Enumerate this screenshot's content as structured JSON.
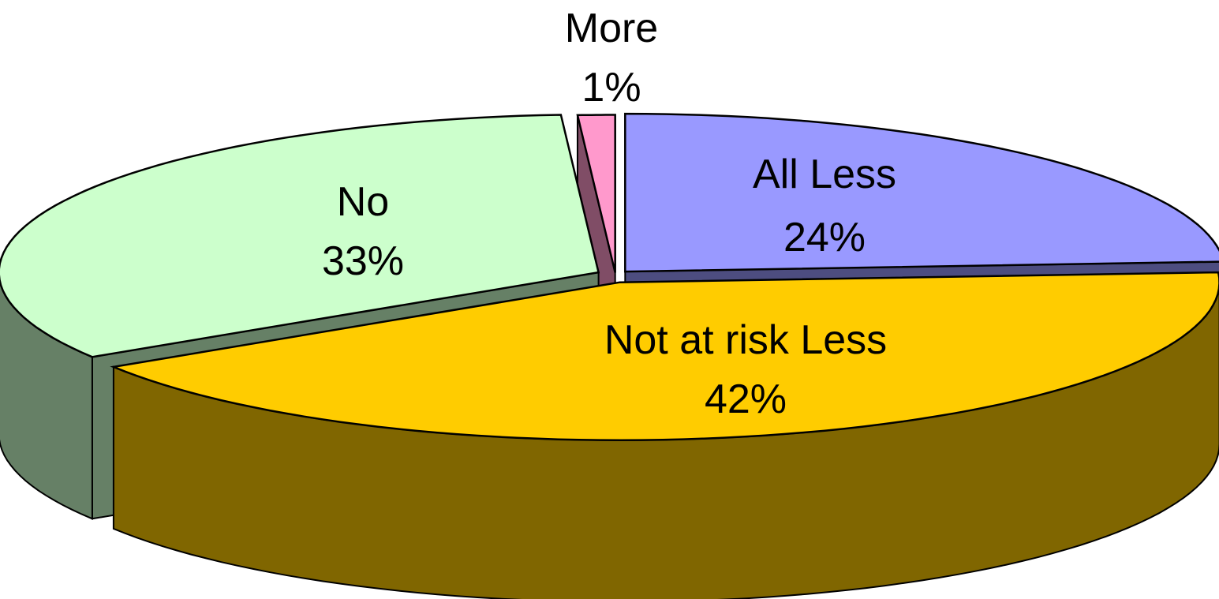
{
  "chart_data": {
    "type": "pie",
    "style": "3d-exploded",
    "slices": [
      {
        "category": "All Less",
        "value": 24,
        "pct_label": "24%",
        "top_color": "#9999ff",
        "side_color": "#4d4d80"
      },
      {
        "category": "Not at risk Less",
        "value": 42,
        "pct_label": "42%",
        "top_color": "#ffcc00",
        "side_color": "#806600"
      },
      {
        "category": "No",
        "value": 33,
        "pct_label": "33%",
        "top_color": "#ccffcc",
        "side_color": "#668066"
      },
      {
        "category": "More",
        "value": 1,
        "pct_label": "1%",
        "top_color": "#ff99cc",
        "side_color": "#804d66"
      }
    ],
    "legend": "none",
    "outline_color": "#000000"
  }
}
